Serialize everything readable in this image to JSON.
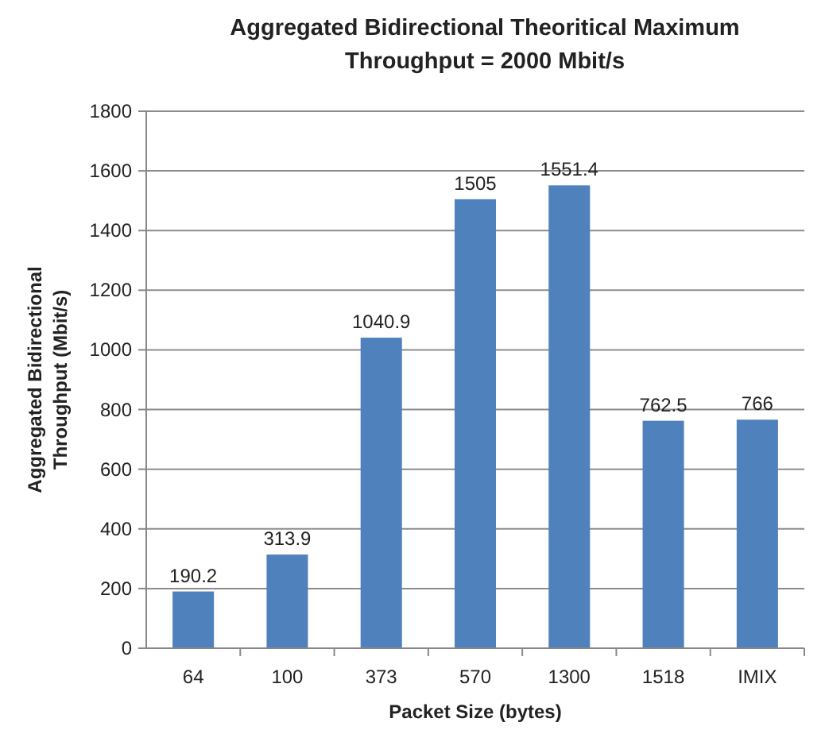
{
  "chart_data": {
    "type": "bar",
    "title": "Aggregated Bidirectional Theoritical Maximum\nThroughput = 2000 Mbit/s",
    "xlabel": "Packet Size (bytes)",
    "ylabel": "Aggregated Bidirectional\nThroughput  (Mbit/s)",
    "categories": [
      "64",
      "100",
      "373",
      "570",
      "1300",
      "1518",
      "IMIX"
    ],
    "values": [
      190.2,
      313.9,
      1040.9,
      1505,
      1551.4,
      762.5,
      766
    ],
    "color": "#4f81bd",
    "ylim": [
      0,
      1800
    ],
    "yticks": [
      0,
      200,
      400,
      600,
      800,
      1000,
      1200,
      1400,
      1600,
      1800
    ],
    "grid": true,
    "data_labels": true
  }
}
